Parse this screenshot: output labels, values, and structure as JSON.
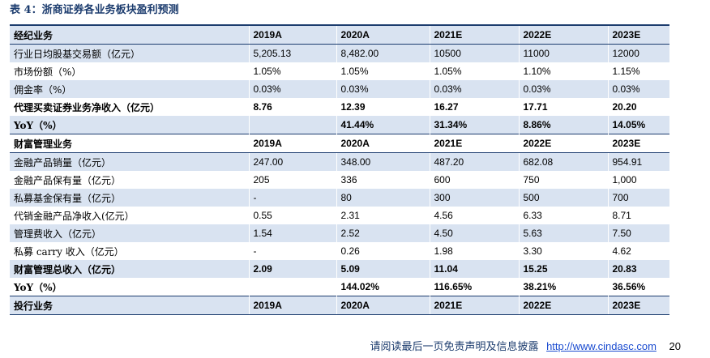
{
  "caption": "表 4：浙商证券各业务板块盈利预测",
  "sections": {
    "brokerage": {
      "header": [
        "经纪业务",
        "2019A",
        "2020A",
        "2021E",
        "2022E",
        "2023E"
      ],
      "rows": [
        [
          "行业日均股基交易额（亿元）",
          "5,205.13",
          "8,482.00",
          "10500",
          "11000",
          "12000"
        ],
        [
          "市场份额（%）",
          "1.05%",
          "1.05%",
          "1.05%",
          "1.10%",
          "1.15%"
        ],
        [
          "佣金率（%）",
          "0.03%",
          "0.03%",
          "0.03%",
          "0.03%",
          "0.03%"
        ],
        [
          "代理买卖证券业务净收入（亿元）",
          "8.76",
          "12.39",
          "16.27",
          "17.71",
          "20.20"
        ],
        [
          "YoY（%）",
          "",
          "41.44%",
          "31.34%",
          "8.86%",
          "14.05%"
        ]
      ]
    },
    "wealth": {
      "header": [
        "财富管理业务",
        "2019A",
        "2020A",
        "2021E",
        "2022E",
        "2023E"
      ],
      "rows": [
        [
          "金融产品销量（亿元）",
          "247.00",
          "348.00",
          "487.20",
          "682.08",
          "954.91"
        ],
        [
          "金融产品保有量（亿元）",
          "205",
          "336",
          "600",
          "750",
          "1,000"
        ],
        [
          "私募基金保有量（亿元）",
          "-",
          "80",
          "300",
          "500",
          "700"
        ],
        [
          "代销金融产品净收入(亿元）",
          "0.55",
          "2.31",
          "4.56",
          "6.33",
          "8.71"
        ],
        [
          "管理费收入（亿元）",
          "1.54",
          "2.52",
          "4.50",
          "5.63",
          "7.50"
        ],
        [
          "私募 carry 收入（亿元）",
          "-",
          "0.26",
          "1.98",
          "3.30",
          "4.62"
        ],
        [
          "财富管理总收入（亿元）",
          "2.09",
          "5.09",
          "11.04",
          "15.25",
          "20.83"
        ],
        [
          "YoY（%）",
          "",
          "144.02%",
          "116.65%",
          "38.21%",
          "36.56%"
        ]
      ]
    },
    "ib": {
      "header": [
        "投行业务",
        "2019A",
        "2020A",
        "2021E",
        "2022E",
        "2023E"
      ]
    }
  },
  "footer": {
    "note": "请阅读最后一页免责声明及信息披露",
    "link": "http://www.cindasc.com",
    "page": "20"
  },
  "colors": {
    "accent": "#1c3c6e",
    "shade": "#d9e3f1",
    "link": "#1a4bd0"
  }
}
